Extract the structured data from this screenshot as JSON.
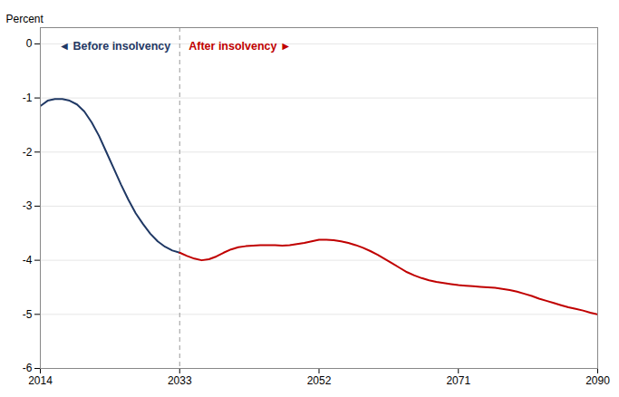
{
  "chart_data": {
    "type": "line",
    "ylabel": "Percent",
    "xlim": [
      2014,
      2090
    ],
    "ylim": [
      -6,
      0.3
    ],
    "xticks": [
      2014,
      2033,
      2052,
      2071,
      2090
    ],
    "yticks": [
      0,
      -1,
      -2,
      -3,
      -4,
      -5,
      -6
    ],
    "grid": true,
    "vline_x": 2033,
    "series": [
      {
        "name": "◄ Before insolvency",
        "color": "#1f3864",
        "x": [
          2014,
          2015,
          2016,
          2017,
          2018,
          2019,
          2020,
          2021,
          2022,
          2023,
          2024,
          2025,
          2026,
          2027,
          2028,
          2029,
          2030,
          2031,
          2032,
          2033
        ],
        "values": [
          -1.15,
          -1.05,
          -1.02,
          -1.02,
          -1.05,
          -1.12,
          -1.25,
          -1.45,
          -1.7,
          -2.0,
          -2.3,
          -2.6,
          -2.88,
          -3.13,
          -3.33,
          -3.51,
          -3.65,
          -3.75,
          -3.82,
          -3.86
        ]
      },
      {
        "name": "After insolvency ►",
        "color": "#c00000",
        "x": [
          2033,
          2034,
          2035,
          2036,
          2037,
          2038,
          2039,
          2040,
          2041,
          2042,
          2043,
          2044,
          2045,
          2046,
          2047,
          2048,
          2049,
          2050,
          2051,
          2052,
          2053,
          2054,
          2055,
          2056,
          2057,
          2058,
          2059,
          2060,
          2061,
          2062,
          2063,
          2064,
          2065,
          2066,
          2067,
          2068,
          2069,
          2070,
          2071,
          2072,
          2073,
          2074,
          2075,
          2076,
          2077,
          2078,
          2079,
          2080,
          2081,
          2082,
          2083,
          2084,
          2085,
          2086,
          2087,
          2088,
          2089,
          2090
        ],
        "values": [
          -3.86,
          -3.92,
          -3.97,
          -4.0,
          -3.98,
          -3.93,
          -3.86,
          -3.8,
          -3.76,
          -3.74,
          -3.73,
          -3.72,
          -3.72,
          -3.72,
          -3.73,
          -3.72,
          -3.7,
          -3.68,
          -3.65,
          -3.62,
          -3.62,
          -3.63,
          -3.65,
          -3.68,
          -3.72,
          -3.77,
          -3.83,
          -3.9,
          -3.98,
          -4.06,
          -4.14,
          -4.22,
          -4.28,
          -4.33,
          -4.37,
          -4.4,
          -4.42,
          -4.44,
          -4.46,
          -4.47,
          -4.48,
          -4.49,
          -4.5,
          -4.51,
          -4.53,
          -4.55,
          -4.58,
          -4.62,
          -4.66,
          -4.71,
          -4.75,
          -4.79,
          -4.83,
          -4.87,
          -4.9,
          -4.93,
          -4.97,
          -5.0
        ]
      }
    ]
  }
}
